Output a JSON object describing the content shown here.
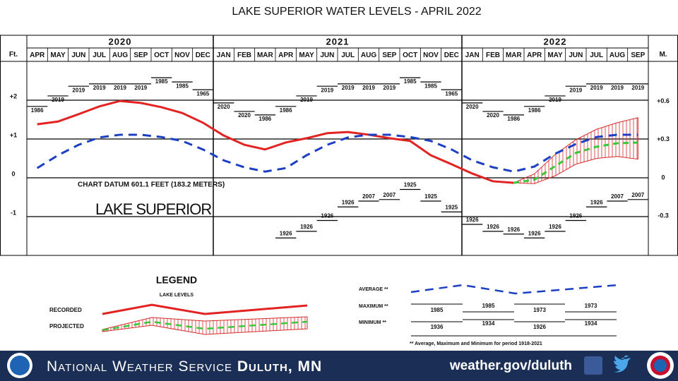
{
  "title": "LAKE SUPERIOR WATER LEVELS - APRIL 2022",
  "chart_data": {
    "type": "line",
    "year_labels": [
      "2020",
      "2021",
      "2022"
    ],
    "categories": [
      "APR",
      "MAY",
      "JUN",
      "JUL",
      "AUG",
      "SEP",
      "OCT",
      "NOV",
      "DEC",
      "JAN",
      "FEB",
      "MAR",
      "APR",
      "MAY",
      "JUN",
      "JUL",
      "AUG",
      "SEP",
      "OCT",
      "NOV",
      "DEC",
      "JAN",
      "FEB",
      "MAR",
      "APR",
      "MAY",
      "JUN",
      "JUL",
      "AUG",
      "SEP"
    ],
    "y_label": "Ft.",
    "y2_label": "M.",
    "ylim": [
      -2,
      3
    ],
    "yticks": [
      {
        "value": 2,
        "label": "+2"
      },
      {
        "value": 1,
        "label": "+1"
      },
      0,
      -1
    ],
    "y2lim": [
      -0.6096,
      0.9144
    ],
    "y2ticks": [
      {
        "value": 0.6,
        "label": "+0.6"
      },
      {
        "value": 0.3,
        "label": "+0.3"
      },
      0,
      -0.3
    ],
    "grid": true,
    "series": [
      {
        "name": "RECORDED",
        "color": "#e32222",
        "values": [
          1.38,
          1.45,
          1.64,
          1.84,
          1.98,
          1.93,
          1.82,
          1.67,
          1.42,
          1.09,
          0.85,
          0.73,
          0.91,
          1.02,
          1.15,
          1.18,
          1.11,
          1.02,
          0.95,
          0.58,
          0.35,
          0.11,
          -0.09,
          -0.13,
          null,
          null,
          null,
          null,
          null,
          null
        ]
      },
      {
        "name": "AVERAGE **",
        "color": "#1c3fc4",
        "values": [
          0.25,
          0.58,
          0.85,
          1.04,
          1.11,
          1.11,
          1.05,
          0.95,
          0.73,
          0.45,
          0.27,
          0.16,
          0.25,
          0.58,
          0.85,
          1.04,
          1.11,
          1.11,
          1.05,
          0.95,
          0.73,
          0.45,
          0.27,
          0.16,
          0.29,
          0.62,
          0.87,
          1.05,
          1.11,
          1.11
        ]
      },
      {
        "name": "PROJECTED",
        "color": "#38c838",
        "values": [
          null,
          null,
          null,
          null,
          null,
          null,
          null,
          null,
          null,
          null,
          null,
          null,
          null,
          null,
          null,
          null,
          null,
          null,
          null,
          null,
          null,
          null,
          null,
          -0.13,
          -0.05,
          0.3,
          0.64,
          0.8,
          0.89,
          0.91
        ]
      }
    ],
    "projection_max": {
      "color": "#d42a2a",
      "values": [
        null,
        null,
        null,
        null,
        null,
        null,
        null,
        null,
        null,
        null,
        null,
        null,
        null,
        null,
        null,
        null,
        null,
        null,
        null,
        null,
        null,
        null,
        null,
        -0.13,
        0.1,
        0.6,
        0.98,
        1.25,
        1.42,
        1.55
      ]
    },
    "projection_min": {
      "values": [
        null,
        null,
        null,
        null,
        null,
        null,
        null,
        null,
        null,
        null,
        null,
        null,
        null,
        null,
        null,
        null,
        null,
        null,
        null,
        null,
        null,
        null,
        null,
        -0.13,
        -0.15,
        0.05,
        0.35,
        0.5,
        0.55,
        0.48
      ]
    },
    "record_max": {
      "values": [
        1.84,
        2.11,
        2.36,
        2.42,
        2.42,
        2.42,
        2.58,
        2.47,
        2.27,
        1.93,
        1.71,
        1.62,
        1.84,
        2.11,
        2.36,
        2.42,
        2.42,
        2.42,
        2.58,
        2.47,
        2.27,
        1.93,
        1.71,
        1.62,
        1.84,
        2.11,
        2.36,
        2.42,
        2.42,
        2.42
      ],
      "years": [
        "1986",
        "2019",
        "2019",
        "2019",
        "2019",
        "2019",
        "1985",
        "1985",
        "1965",
        "2020",
        "2020",
        "1986",
        "1986",
        "2019",
        "2019",
        "2019",
        "2019",
        "2019",
        "1985",
        "1985",
        "1965",
        "2020",
        "2020",
        "1986",
        "1986",
        "2019",
        "2019",
        "2019",
        "2019",
        "2019"
      ]
    },
    "record_min": {
      "values": [
        null,
        null,
        null,
        null,
        null,
        null,
        null,
        null,
        null,
        null,
        null,
        null,
        -1.55,
        -1.38,
        -1.1,
        -0.75,
        -0.6,
        -0.56,
        -0.3,
        -0.6,
        -0.88,
        -1.2,
        -1.38,
        -1.45,
        -1.55,
        -1.38,
        -1.1,
        -0.75,
        -0.6,
        -0.56
      ],
      "years": [
        null,
        null,
        null,
        null,
        null,
        null,
        null,
        null,
        null,
        null,
        null,
        null,
        "1926",
        "1926",
        "1926",
        "1926",
        "2007",
        "2007",
        "1925",
        "1925",
        "1925",
        "1926",
        "1926",
        "1926",
        "1926",
        "1926",
        "1926",
        "1926",
        "2007",
        "2007"
      ]
    },
    "annotations": [
      "CHART DATUM  601.1 FEET (183.2 METERS)",
      "LAKE SUPERIOR"
    ]
  },
  "legend": {
    "title": "LEGEND",
    "subtitle": "LAKE LEVELS",
    "maximum": "MAXIMUM **",
    "minimum": "MINIMUM **",
    "max_years": [
      "1985",
      "1985",
      "1973",
      "1973"
    ],
    "min_years": [
      "1936",
      "1934",
      "1926",
      "1934"
    ],
    "note": "** Average, Maximum and Minimum for period 1918-2021"
  },
  "footer": {
    "agency": "National Weather Service",
    "office": "Duluth, MN",
    "url": "weather.gov/duluth"
  }
}
